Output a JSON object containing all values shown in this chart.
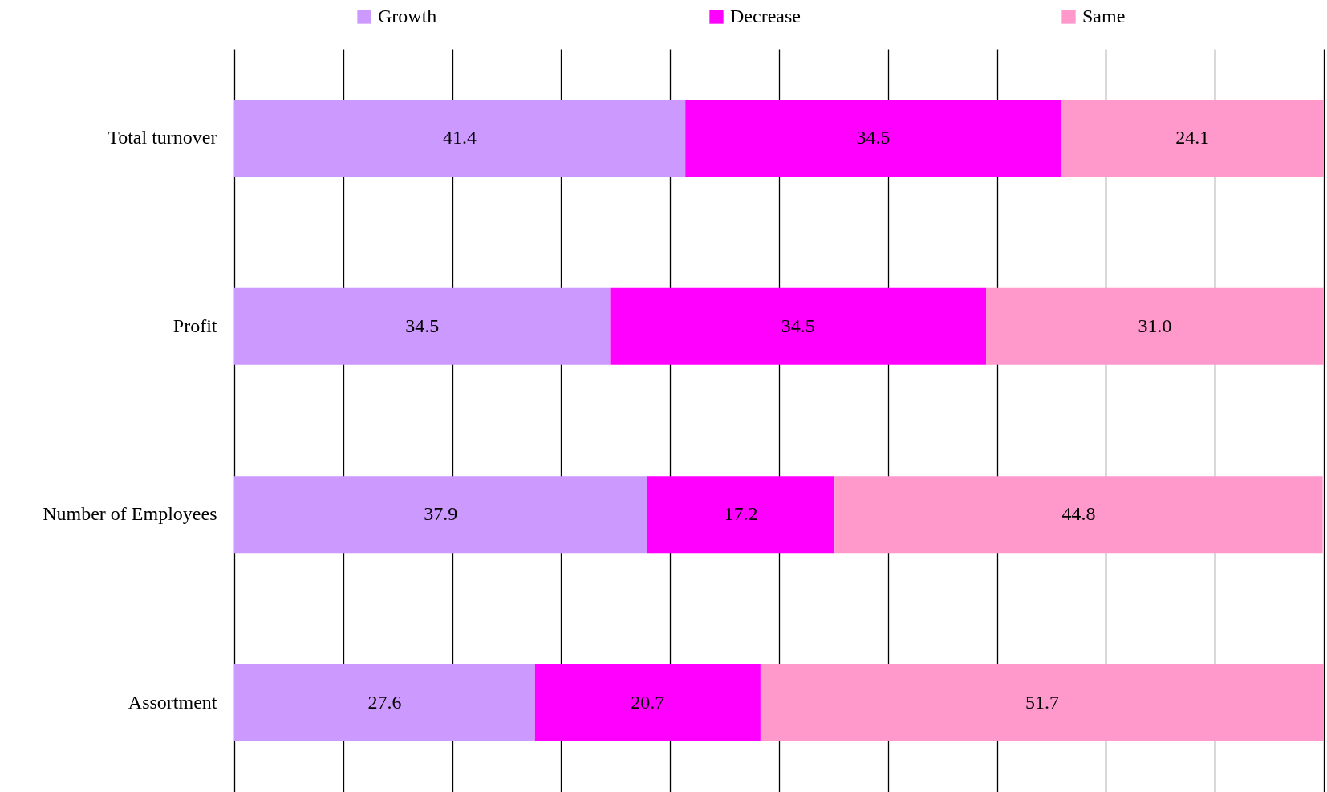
{
  "chart_data": {
    "type": "bar",
    "orientation": "horizontal",
    "stacked": true,
    "categories": [
      "Total turnover",
      "Profit",
      "Number of Employees",
      "Assortment"
    ],
    "series": [
      {
        "name": "Growth",
        "color": "#cc99ff",
        "values": [
          41.4,
          34.5,
          37.9,
          27.6
        ],
        "value_labels": [
          "41.4",
          "34.5",
          "37.9",
          "27.6"
        ]
      },
      {
        "name": "Decrease",
        "color": "#ff00ff",
        "values": [
          34.5,
          34.5,
          17.2,
          20.7
        ],
        "value_labels": [
          "34.5",
          "34.5",
          "17.2",
          "20.7"
        ]
      },
      {
        "name": "Same",
        "color": "#ff99cc",
        "values": [
          24.1,
          31.0,
          44.8,
          51.7
        ],
        "value_labels": [
          "24.1",
          "31.0",
          "44.8",
          "51.7"
        ]
      }
    ],
    "xlim": [
      0,
      100
    ],
    "xticks": [
      {
        "value": 0,
        "label": null
      },
      {
        "value": 10,
        "label": null
      },
      {
        "value": 20,
        "label": null
      },
      {
        "value": 30,
        "label": null
      },
      {
        "value": 40,
        "label": null
      },
      {
        "value": 50,
        "label": null
      },
      {
        "value": 60,
        "label": null
      },
      {
        "value": 70,
        "label": null
      },
      {
        "value": 80,
        "label": null
      },
      {
        "value": 90,
        "label": null
      },
      {
        "value": 100,
        "label": null
      }
    ],
    "grid": "x",
    "tick_labels": "y",
    "legend": "top"
  }
}
